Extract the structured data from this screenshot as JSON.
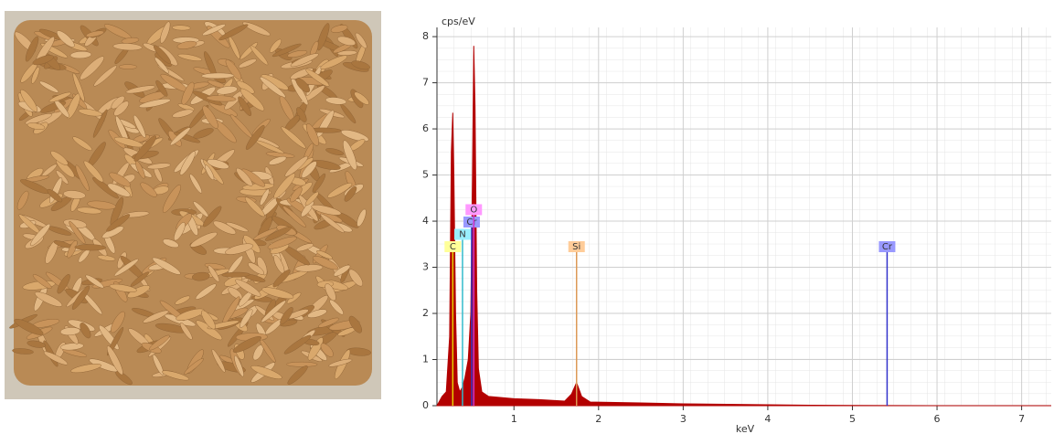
{
  "chart_data": {
    "type": "area",
    "y_label": "cps/eV",
    "x_label": "keV",
    "x": [
      0.09,
      0.12,
      0.15,
      0.2,
      0.24,
      0.26,
      0.277,
      0.29,
      0.31,
      0.33,
      0.36,
      0.39,
      0.42,
      0.46,
      0.49,
      0.51,
      0.525,
      0.54,
      0.56,
      0.58,
      0.62,
      0.7,
      1.0,
      1.3,
      1.6,
      1.68,
      1.74,
      1.8,
      1.9,
      2.5,
      3.0,
      4.0,
      4.5,
      5.0,
      6.0,
      7.35
    ],
    "values": [
      0,
      0.1,
      0.2,
      0.3,
      1.5,
      5.5,
      6.35,
      5.0,
      2.0,
      0.5,
      0.3,
      0.4,
      0.6,
      1.0,
      2.0,
      5.0,
      7.8,
      6.5,
      2.5,
      0.8,
      0.3,
      0.2,
      0.15,
      0.13,
      0.1,
      0.25,
      0.5,
      0.2,
      0.08,
      0.06,
      0.04,
      0.02,
      0.01,
      0.005,
      0,
      0
    ],
    "color": "#b30000",
    "xlim": [
      0.09,
      7.35
    ],
    "ylim": [
      0,
      8.2
    ],
    "xticks": [
      1,
      2,
      3,
      4,
      5,
      6,
      7
    ],
    "yticks": [
      0,
      1,
      2,
      3,
      4,
      5,
      6,
      7,
      8
    ],
    "grid": true,
    "markers": [
      {
        "label": "C",
        "energy": 0.277,
        "color": "#e6d000",
        "box": "#ffff99"
      },
      {
        "label": "N",
        "energy": 0.392,
        "color": "#33bbcc",
        "box": "#99eeff"
      },
      {
        "label": "Cr",
        "energy": 0.5,
        "color": "#3333cc",
        "box": "#9999ff"
      },
      {
        "label": "O",
        "energy": 0.525,
        "color": "#cc33cc",
        "box": "#ff99ff"
      },
      {
        "label": "Si",
        "energy": 1.74,
        "color": "#dd9955",
        "box": "#ffcc99"
      },
      {
        "label": "Cr",
        "energy": 5.41,
        "color": "#3333cc",
        "box": "#9999ff"
      }
    ]
  }
}
